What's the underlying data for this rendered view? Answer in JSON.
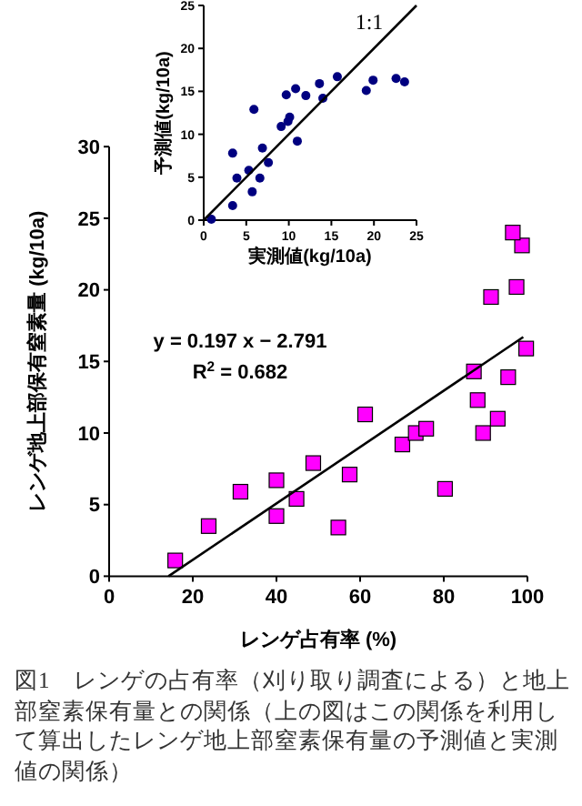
{
  "chart_data": [
    {
      "type": "scatter",
      "xlabel": "実測値(kg/10a)",
      "ylabel": "予測値(kg/10a)",
      "xlim": [
        0,
        25
      ],
      "xticks": [
        0,
        5,
        10,
        15,
        20,
        25
      ],
      "ylim": [
        0,
        25
      ],
      "yticks": [
        0,
        5,
        10,
        15,
        20,
        25
      ],
      "annotations": [
        "1:1"
      ],
      "series": [
        {
          "type": "scatter",
          "color": "#000080",
          "marker": "circle",
          "x": [
            0.9,
            3.4,
            3.4,
            3.9,
            5.3,
            5.7,
            5.9,
            6.6,
            6.9,
            7.6,
            9.1,
            9.7,
            9.9,
            10.1,
            10.8,
            11.0,
            12.0,
            13.6,
            14.0,
            15.7,
            19.1,
            19.9,
            22.6,
            23.6
          ],
          "values": [
            0.1,
            7.8,
            1.7,
            4.9,
            5.8,
            3.3,
            12.9,
            4.9,
            8.4,
            6.7,
            10.9,
            14.6,
            11.5,
            12.0,
            15.3,
            9.2,
            14.5,
            15.9,
            14.2,
            16.7,
            15.1,
            16.3,
            16.5,
            16.1
          ]
        },
        {
          "type": "line",
          "color": "#000000",
          "x": [
            0,
            25
          ],
          "values": [
            0,
            25
          ]
        }
      ]
    },
    {
      "type": "scatter",
      "xlabel": "レンゲ占有率 (%)",
      "ylabel": "レンゲ地上部保有窒素量 (kg/10a)",
      "xlim": [
        0,
        100
      ],
      "xticks": [
        0,
        20,
        40,
        60,
        80,
        100
      ],
      "ylim": [
        0,
        30
      ],
      "yticks": [
        0,
        5,
        10,
        15,
        20,
        25,
        30
      ],
      "annotations": [
        "y = 0.197 x − 2.791",
        "R$^{2}$ = 0.682",
        "図1　レンゲの占有率（刈り取り調査による）と地上部窒素保有量との関係（上の図はこの関係を利用して算出したレンゲ地上部窒素保有量の予測値と実測値の関係）"
      ],
      "series": [
        {
          "type": "scatter",
          "color": "#ff00ff",
          "marker": "square",
          "x": [
            15.8,
            23.8,
            31.4,
            40.0,
            40.0,
            44.8,
            48.8,
            54.8,
            57.5,
            61.2,
            70.1,
            73.3,
            75.8,
            80.3,
            87.2,
            88.1,
            89.4,
            91.3,
            92.9,
            95.4,
            97.4,
            98.7,
            96.5,
            99.7
          ],
          "values": [
            1.1,
            3.5,
            5.9,
            6.7,
            4.2,
            5.4,
            7.9,
            3.4,
            7.1,
            11.3,
            9.2,
            10.0,
            10.3,
            6.1,
            14.3,
            12.3,
            10.0,
            19.5,
            11.0,
            13.9,
            20.2,
            23.1,
            24.0,
            15.9
          ]
        },
        {
          "type": "line",
          "color": "#000000",
          "x": [
            14.2,
            99
          ],
          "values": [
            0,
            16.7
          ]
        }
      ]
    }
  ]
}
